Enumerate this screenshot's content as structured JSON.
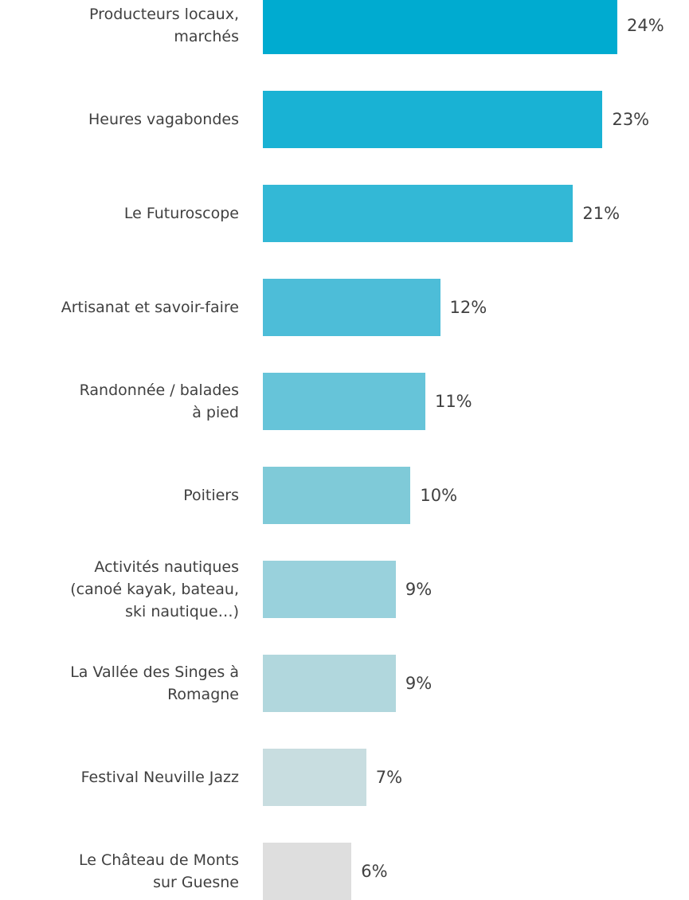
{
  "chart_data": {
    "type": "bar",
    "categories": [
      "Producteurs locaux,\nmarchés",
      "Heures vagabondes",
      "Le Futuroscope",
      "Artisanat et savoir-faire",
      "Randonnée / balades\nà pied",
      "Poitiers",
      "Activités nautiques\n(canoé kayak, bateau,\nski nautique…)",
      "La Vallée des Singes à\nRomagne",
      "Festival Neuville Jazz",
      "Le Château de Monts\nsur Guesne"
    ],
    "values": [
      24,
      23,
      21,
      12,
      11,
      10,
      9,
      9,
      7,
      6
    ],
    "value_labels": [
      "24%",
      "23%",
      "21%",
      "12%",
      "11%",
      "10%",
      "9%",
      "9%",
      "7%",
      "6%"
    ],
    "colors": [
      "#00abd0",
      "#19b2d4",
      "#33b8d6",
      "#4dbdd8",
      "#66c4d9",
      "#7fcad8",
      "#99d1dc",
      "#b1d7dd",
      "#c8dde0",
      "#dedede"
    ]
  }
}
